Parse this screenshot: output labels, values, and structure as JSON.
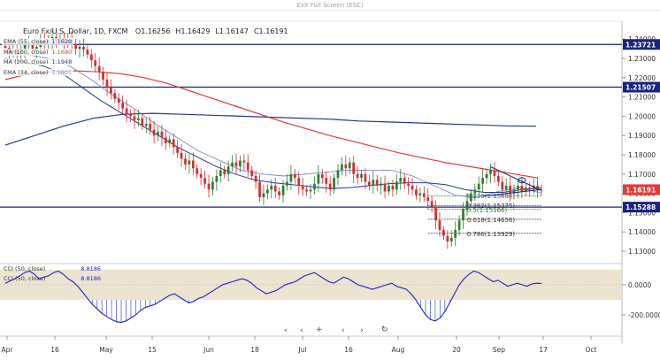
{
  "top_bar": {
    "exit_fullscreen_label": "Exit Full Screen (ESC)"
  },
  "header": {
    "symbol": "Euro Fx/U.S. Dollar, 1D, FXCM",
    "ohlc": [
      {
        "k": "O",
        "v": "1.16256"
      },
      {
        "k": "H",
        "v": "1.16429"
      },
      {
        "k": "L",
        "v": "1.16147"
      },
      {
        "k": "C",
        "v": "1.16191"
      }
    ]
  },
  "indicators": [
    {
      "label": "EMA (55, close)",
      "value": "1.1628",
      "color": "#1f3a93"
    },
    {
      "label": "MA (100, close)",
      "value": "1.1680",
      "color": "#e53935"
    },
    {
      "label": "MA (200, close)",
      "value": "1.1948",
      "color": "#1f3a93"
    },
    {
      "label": "EMA (34, close)",
      "value": "1.1601",
      "color": "#7986cb"
    }
  ],
  "cci_legend": [
    {
      "label": "CCI (50, close)",
      "value": "8.8186"
    },
    {
      "label": "CCI (50, close)",
      "value": "8.8186"
    }
  ],
  "colors": {
    "up": "#2e7d32",
    "down": "#d32f2f",
    "level": "#1a237e",
    "price_tag": "#e53935",
    "cci_band": "#e8dcc5",
    "cci_line": "#1a23c8"
  },
  "controls": {
    "prev": "‹",
    "next": "›",
    "reset": "+",
    "refresh": "↻"
  },
  "chart_data": {
    "type": "candlestick",
    "title": "Euro Fx/U.S. Dollar, 1D, FXCM",
    "x_labels": [
      "Apr",
      "16",
      "May",
      "15",
      "Jun",
      "18",
      "Jul",
      "16",
      "Aug",
      "20",
      "Sep",
      "17",
      "Oct"
    ],
    "y_ticks": [
      "1.24000",
      "1.23000",
      "1.22000",
      "1.21000",
      "1.20000",
      "1.19000",
      "1.18000",
      "1.17000",
      "1.16000",
      "1.15000",
      "1.14000",
      "1.13000"
    ],
    "y_tick_values": [
      1.24,
      1.23,
      1.22,
      1.21,
      1.2,
      1.19,
      1.18,
      1.17,
      1.16,
      1.15,
      1.14,
      1.13
    ],
    "ylim": [
      1.1245,
      1.2465
    ],
    "levels": [
      {
        "value": 1.23721,
        "label": "1.23721"
      },
      {
        "value": 1.21507,
        "label": "1.21507"
      },
      {
        "value": 1.15288,
        "label": "1.15288"
      }
    ],
    "last_price": {
      "value": 1.16191,
      "label": "1.16191"
    },
    "fibonacci": [
      {
        "label": "0.236(1.15880)",
        "value": 1.1588,
        "color": "#2e7d32"
      },
      {
        "label": "0.382(1.15375)",
        "value": 1.15375,
        "color": "#333333"
      },
      {
        "label": "0.5(1.15166)",
        "value": 1.15166,
        "color": "#2e7d32"
      },
      {
        "label": "0.618(1.14656)",
        "value": 1.14656,
        "color": "#333333"
      },
      {
        "label": "0.786(1.13929)",
        "value": 1.13929,
        "color": "#333333"
      }
    ],
    "closes": [
      1.2355,
      1.233,
      1.2345,
      1.232,
      1.235,
      1.237,
      1.2375,
      1.234,
      1.236,
      1.239,
      1.238,
      1.2395,
      1.241,
      1.239,
      1.2405,
      1.238,
      1.2395,
      1.2375,
      1.235,
      1.236,
      1.2345,
      1.232,
      1.229,
      1.226,
      1.223,
      1.219,
      1.215,
      1.212,
      1.209,
      1.207,
      1.204,
      1.201,
      1.2,
      1.198,
      1.199,
      1.195,
      1.196,
      1.193,
      1.19,
      1.192,
      1.189,
      1.186,
      1.188,
      1.184,
      1.181,
      1.178,
      1.175,
      1.177,
      1.173,
      1.17,
      1.168,
      1.165,
      1.162,
      1.166,
      1.169,
      1.172,
      1.17,
      1.174,
      1.176,
      1.174,
      1.177,
      1.176,
      1.172,
      1.169,
      1.166,
      1.158,
      1.16,
      1.162,
      1.164,
      1.161,
      1.159,
      1.164,
      1.166,
      1.17,
      1.168,
      1.164,
      1.162,
      1.161,
      1.162,
      1.165,
      1.17,
      1.168,
      1.165,
      1.162,
      1.168,
      1.172,
      1.175,
      1.173,
      1.176,
      1.17,
      1.168,
      1.17,
      1.166,
      1.164,
      1.167,
      1.164,
      1.165,
      1.161,
      1.164,
      1.162,
      1.166,
      1.168,
      1.165,
      1.164,
      1.162,
      1.159,
      1.16,
      1.158,
      1.156,
      1.153,
      1.146,
      1.141,
      1.138,
      1.135,
      1.137,
      1.141,
      1.146,
      1.152,
      1.156,
      1.16,
      1.162,
      1.165,
      1.168,
      1.17,
      1.172,
      1.169,
      1.166,
      1.162,
      1.164,
      1.16,
      1.162,
      1.164,
      1.161,
      1.163,
      1.162,
      1.164,
      1.162,
      1.16191
    ],
    "ema55": [
      1.23,
      1.228,
      1.226,
      1.222,
      1.215,
      1.208,
      1.202,
      1.196,
      1.19,
      1.184,
      1.179,
      1.174,
      1.17,
      1.167,
      1.1655,
      1.1645,
      1.1635,
      1.1625,
      1.163,
      1.164,
      1.165,
      1.1655,
      1.1655,
      1.1645,
      1.162,
      1.1605,
      1.1605,
      1.162,
      1.1628
    ],
    "ma100": [
      1.219,
      1.222,
      1.223,
      1.2235,
      1.223,
      1.222,
      1.22,
      1.217,
      1.213,
      1.209,
      1.205,
      1.201,
      1.197,
      1.1935,
      1.19,
      1.187,
      1.184,
      1.181,
      1.1785,
      1.176,
      1.174,
      1.172,
      1.17,
      1.168
    ],
    "ma200": [
      1.185,
      1.19,
      1.195,
      1.199,
      1.201,
      1.2015,
      1.201,
      1.2005,
      1.2,
      1.1995,
      1.199,
      1.1985,
      1.1975,
      1.197,
      1.1965,
      1.196,
      1.1955,
      1.195,
      1.1948
    ],
    "ema34": [
      1.234,
      1.232,
      1.23,
      1.226,
      1.219,
      1.211,
      1.204,
      1.196,
      1.189,
      1.182,
      1.177,
      1.172,
      1.17,
      1.169,
      1.17,
      1.171,
      1.172,
      1.172,
      1.172,
      1.169,
      1.164,
      1.159,
      1.158,
      1.161,
      1.163,
      1.1601
    ],
    "cci": {
      "ylim": [
        -270,
        140
      ],
      "y_ticks": [
        "0.0000",
        "-200.0000"
      ],
      "y_tick_values": [
        0,
        -200
      ],
      "band": [
        -100,
        100
      ],
      "values": [
        10,
        25,
        40,
        60,
        80,
        90,
        70,
        40,
        50,
        60,
        80,
        90,
        70,
        40,
        20,
        -10,
        -50,
        -90,
        -130,
        -160,
        -190,
        -210,
        -230,
        -245,
        -250,
        -240,
        -220,
        -200,
        -170,
        -150,
        -140,
        -130,
        -110,
        -90,
        -70,
        -60,
        -80,
        -100,
        -120,
        -110,
        -90,
        -80,
        -60,
        -40,
        -20,
        0,
        10,
        20,
        30,
        40,
        30,
        10,
        -20,
        -40,
        -60,
        -50,
        -40,
        -20,
        0,
        10,
        20,
        40,
        60,
        70,
        80,
        60,
        40,
        20,
        10,
        30,
        50,
        40,
        20,
        0,
        -10,
        -20,
        -30,
        -20,
        -10,
        0,
        10,
        -10,
        -20,
        -30,
        -60,
        -100,
        -150,
        -200,
        -230,
        -240,
        -220,
        -180,
        -120,
        -60,
        0,
        40,
        70,
        90,
        80,
        60,
        40,
        20,
        30,
        10,
        -10,
        0,
        10,
        0,
        -10,
        5,
        10,
        8.8
      ]
    }
  }
}
